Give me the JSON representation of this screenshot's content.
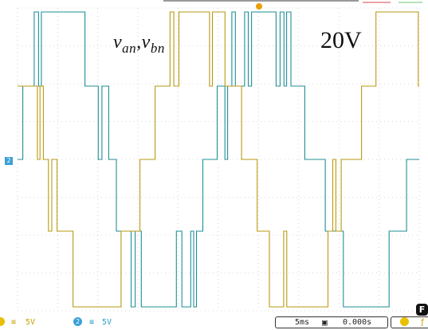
{
  "overlay": {
    "signal_v1": "v",
    "signal_sub1": "an",
    "signal_sep": ",",
    "signal_v2": "v",
    "signal_sub2": "bn",
    "scale_text": "20V"
  },
  "status": {
    "ch1_symbol": "≡",
    "ch1_scale": "5V",
    "ch2_number": "2",
    "ch2_symbol": "≡",
    "ch2_scale": "5V",
    "timebase": "5ms",
    "position": "0.000s"
  },
  "markers": {
    "channel2": "2",
    "menu_button": "F"
  },
  "colors": {
    "channel1": "#b89a10",
    "channel2": "#1f8f96",
    "grid": "#b8b8b8",
    "background": "#ffffff"
  }
}
